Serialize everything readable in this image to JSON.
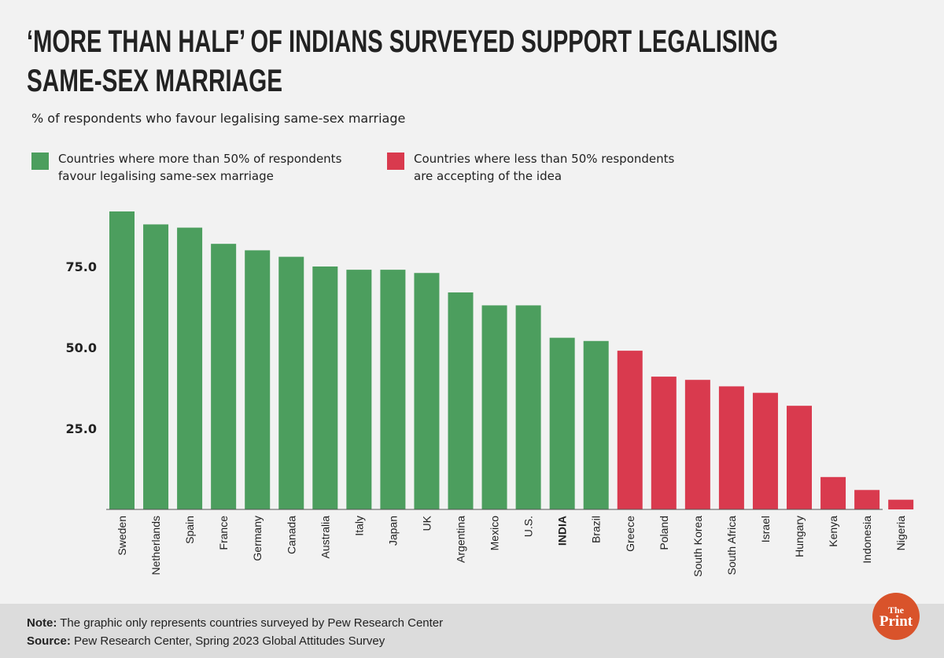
{
  "chart_data": {
    "type": "bar",
    "title": [
      "‘More than half’ of Indians surveyed support legalising",
      "same-sex marriage"
    ],
    "subtitle": "% of respondents who favour legalising same-sex marriage",
    "legend": [
      {
        "label": [
          "Countries where more than 50% of respondents",
          "favour legalising same-sex marriage"
        ],
        "color": "#4c9e5e"
      },
      {
        "label": [
          "Countries where less than 50% respondents",
          "are accepting of the idea"
        ],
        "color": "#d93a4e"
      }
    ],
    "categories": [
      "Sweden",
      "Netherlands",
      "Spain",
      "France",
      "Germany",
      "Canada",
      "Australia",
      "Italy",
      "Japan",
      "UK",
      "Argentina",
      "Mexico",
      "U.S.",
      "INDIA",
      "Brazil",
      "Greece",
      "Poland",
      "South Korea",
      "South Africa",
      "Israel",
      "Hungary",
      "Kenya",
      "Indonesia",
      "Nigeria"
    ],
    "values": [
      92,
      88,
      87,
      82,
      80,
      78,
      75,
      74,
      74,
      73,
      67,
      63,
      63,
      53,
      52,
      49,
      41,
      40,
      38,
      36,
      32,
      10,
      6,
      3
    ],
    "colors": [
      "#4c9e5e",
      "#4c9e5e",
      "#4c9e5e",
      "#4c9e5e",
      "#4c9e5e",
      "#4c9e5e",
      "#4c9e5e",
      "#4c9e5e",
      "#4c9e5e",
      "#4c9e5e",
      "#4c9e5e",
      "#4c9e5e",
      "#4c9e5e",
      "#4c9e5e",
      "#4c9e5e",
      "#d93a4e",
      "#d93a4e",
      "#d93a4e",
      "#d93a4e",
      "#d93a4e",
      "#d93a4e",
      "#d93a4e",
      "#d93a4e",
      "#d93a4e"
    ],
    "ylim": [
      0,
      100
    ],
    "yticks": [
      {
        "value": 25,
        "label": "25.0"
      },
      {
        "value": 50,
        "label": "50.0"
      },
      {
        "value": 75,
        "label": "75.0"
      }
    ],
    "grid": false,
    "note": {
      "label": "Note:",
      "text": " The graphic only represents countries surveyed by Pew Research Center"
    },
    "source": {
      "label": "Source:",
      "text": " Pew Research Center, Spring 2023 Global Attitudes Survey"
    },
    "logo": [
      "The",
      "Print"
    ]
  }
}
